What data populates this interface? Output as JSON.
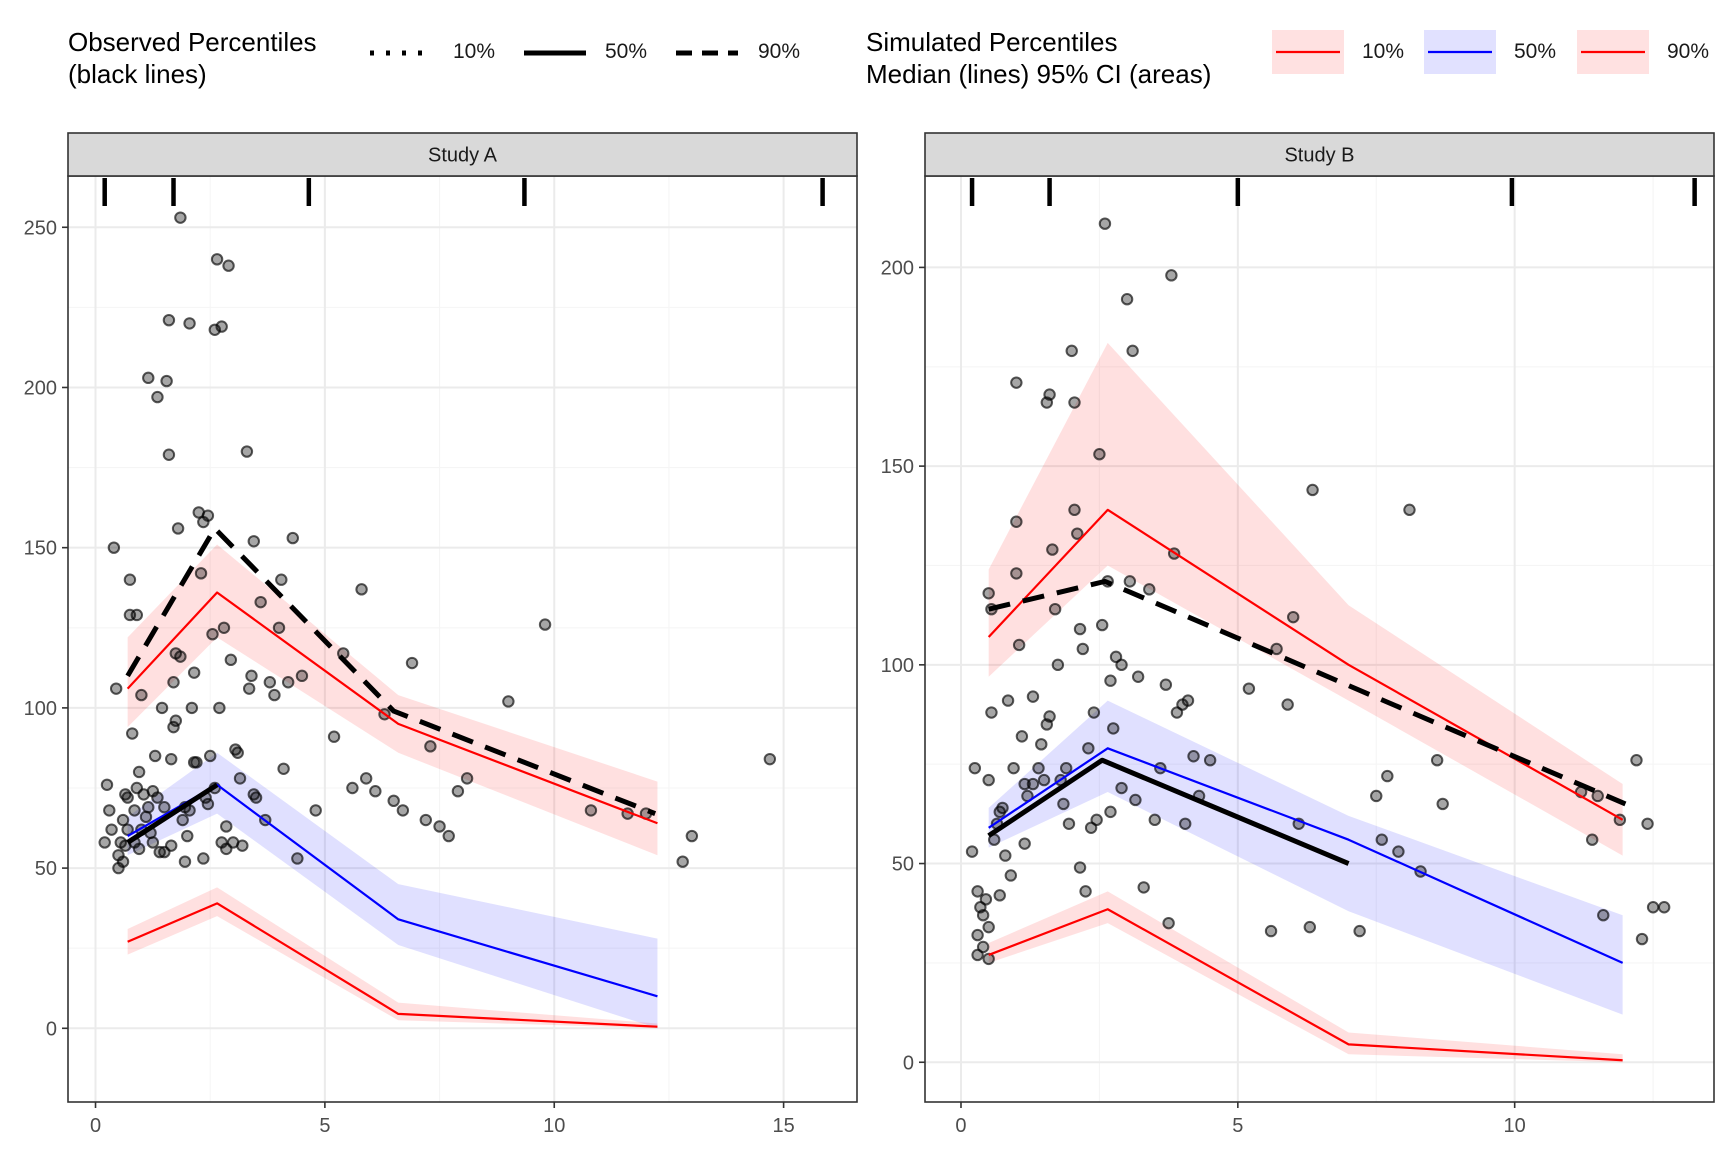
{
  "legend": {
    "observed": {
      "title": [
        "Observed Percentiles",
        "(black lines)"
      ],
      "items": [
        {
          "label": "10%",
          "dash": "dotted"
        },
        {
          "label": "50%",
          "dash": "solid"
        },
        {
          "label": "90%",
          "dash": "dashed"
        }
      ]
    },
    "simulated": {
      "title": [
        "Simulated Percentiles",
        "Median (lines) 95% CI (areas)"
      ],
      "items": [
        {
          "label": "10%",
          "line": "#ff0000",
          "fill": "#ffe1e1"
        },
        {
          "label": "50%",
          "line": "#0000ff",
          "fill": "#e1e1ff"
        },
        {
          "label": "90%",
          "line": "#ff0000",
          "fill": "#ffe1e1"
        }
      ]
    }
  },
  "chart_data": [
    {
      "type": "line",
      "panel": "Study A",
      "xlim": [
        -0.6,
        16.6
      ],
      "ylim": [
        -23,
        266
      ],
      "xticks": [
        0,
        5,
        10,
        15
      ],
      "yticks": [
        0,
        50,
        100,
        150,
        200,
        250
      ],
      "grid": true,
      "bin_edges": [
        0.2,
        1.7,
        4.65,
        9.35,
        15.85
      ],
      "observed": {
        "p50": {
          "x": [
            0.7,
            2.65
          ],
          "y": [
            58,
            76
          ]
        },
        "p90": {
          "x": [
            0.7,
            2.6,
            6.5,
            12.2
          ],
          "y": [
            110,
            156,
            99,
            67
          ]
        }
      },
      "simulated": {
        "x": [
          0.7,
          2.65,
          6.6,
          12.25
        ],
        "p10": {
          "median": [
            27,
            39,
            4.5,
            0.5
          ],
          "lower": [
            23,
            35,
            2.5,
            0
          ],
          "upper": [
            31,
            44,
            8,
            1.5
          ]
        },
        "p50": {
          "median": [
            60,
            76,
            34,
            10
          ],
          "lower": [
            54,
            67,
            26,
            0
          ],
          "upper": [
            66,
            86,
            45,
            28
          ]
        },
        "p90": {
          "median": [
            106,
            136,
            95,
            64
          ],
          "lower": [
            94,
            122,
            86,
            54
          ],
          "upper": [
            122,
            151,
            104,
            77
          ]
        }
      },
      "points": [
        [
          0.2,
          58
        ],
        [
          0.25,
          76
        ],
        [
          0.3,
          68
        ],
        [
          0.35,
          62
        ],
        [
          0.4,
          150
        ],
        [
          0.45,
          106
        ],
        [
          0.5,
          50
        ],
        [
          0.5,
          54
        ],
        [
          0.55,
          58
        ],
        [
          0.6,
          65
        ],
        [
          0.6,
          52
        ],
        [
          0.65,
          57
        ],
        [
          0.7,
          72
        ],
        [
          0.7,
          62
        ],
        [
          0.75,
          129
        ],
        [
          0.75,
          140
        ],
        [
          0.8,
          92
        ],
        [
          0.85,
          58
        ],
        [
          0.9,
          129
        ],
        [
          0.9,
          75
        ],
        [
          0.95,
          56
        ],
        [
          1.0,
          62
        ],
        [
          1.0,
          104
        ],
        [
          1.05,
          73
        ],
        [
          1.1,
          66
        ],
        [
          1.15,
          203
        ],
        [
          1.2,
          61
        ],
        [
          1.25,
          74
        ],
        [
          1.3,
          85
        ],
        [
          1.35,
          197
        ],
        [
          1.4,
          55
        ],
        [
          1.45,
          100
        ],
        [
          1.5,
          69
        ],
        [
          1.55,
          202
        ],
        [
          1.6,
          179
        ],
        [
          1.6,
          221
        ],
        [
          1.65,
          57
        ],
        [
          1.7,
          108
        ],
        [
          1.7,
          94
        ],
        [
          1.75,
          117
        ],
        [
          1.8,
          156
        ],
        [
          1.85,
          253
        ],
        [
          1.85,
          116
        ],
        [
          1.9,
          65
        ],
        [
          1.95,
          52
        ],
        [
          2.0,
          60
        ],
        [
          2.05,
          220
        ],
        [
          2.1,
          100
        ],
        [
          2.15,
          111
        ],
        [
          2.2,
          83
        ],
        [
          2.25,
          161
        ],
        [
          2.3,
          142
        ],
        [
          2.35,
          158
        ],
        [
          2.4,
          72
        ],
        [
          2.45,
          160
        ],
        [
          2.5,
          85
        ],
        [
          2.55,
          123
        ],
        [
          2.6,
          218
        ],
        [
          2.65,
          240
        ],
        [
          2.7,
          100
        ],
        [
          2.75,
          219
        ],
        [
          2.8,
          125
        ],
        [
          2.85,
          56
        ],
        [
          2.9,
          238
        ],
        [
          2.95,
          115
        ],
        [
          3.0,
          58
        ],
        [
          3.1,
          86
        ],
        [
          3.2,
          57
        ],
        [
          3.3,
          180
        ],
        [
          3.35,
          106
        ],
        [
          3.4,
          110
        ],
        [
          3.45,
          152
        ],
        [
          3.5,
          72
        ],
        [
          3.6,
          133
        ],
        [
          3.7,
          65
        ],
        [
          3.8,
          108
        ],
        [
          3.9,
          104
        ],
        [
          4.0,
          125
        ],
        [
          4.05,
          140
        ],
        [
          4.1,
          81
        ],
        [
          4.2,
          108
        ],
        [
          4.3,
          153
        ],
        [
          4.4,
          53
        ],
        [
          4.5,
          110
        ],
        [
          4.8,
          68
        ],
        [
          5.2,
          91
        ],
        [
          5.4,
          117
        ],
        [
          5.6,
          75
        ],
        [
          5.8,
          137
        ],
        [
          5.9,
          78
        ],
        [
          6.1,
          74
        ],
        [
          6.3,
          98
        ],
        [
          6.5,
          71
        ],
        [
          6.7,
          68
        ],
        [
          6.9,
          114
        ],
        [
          7.2,
          65
        ],
        [
          7.3,
          88
        ],
        [
          7.5,
          63
        ],
        [
          7.7,
          60
        ],
        [
          7.9,
          74
        ],
        [
          8.1,
          78
        ],
        [
          9.0,
          102
        ],
        [
          9.8,
          126
        ],
        [
          10.8,
          68
        ],
        [
          11.6,
          67
        ],
        [
          12.0,
          67
        ],
        [
          12.8,
          52
        ],
        [
          13.0,
          60
        ],
        [
          14.7,
          84
        ],
        [
          1.95,
          69
        ],
        [
          2.35,
          53
        ],
        [
          3.05,
          87
        ],
        [
          2.15,
          83
        ],
        [
          1.35,
          72
        ],
        [
          0.95,
          80
        ],
        [
          1.5,
          55
        ],
        [
          2.6,
          75
        ],
        [
          2.05,
          68
        ],
        [
          1.15,
          69
        ],
        [
          3.15,
          78
        ],
        [
          2.75,
          58
        ],
        [
          1.65,
          84
        ],
        [
          0.85,
          68
        ],
        [
          2.45,
          70
        ],
        [
          1.25,
          58
        ],
        [
          2.85,
          63
        ],
        [
          1.75,
          96
        ],
        [
          3.45,
          73
        ],
        [
          0.65,
          73
        ]
      ]
    },
    {
      "type": "line",
      "panel": "Study B",
      "xlim": [
        -0.65,
        13.6
      ],
      "ylim": [
        -10,
        223
      ],
      "xticks": [
        0,
        5,
        10
      ],
      "yticks": [
        0,
        50,
        100,
        150,
        200
      ],
      "grid": true,
      "bin_edges": [
        0.2,
        1.6,
        5.0,
        9.95,
        13.25
      ],
      "observed": {
        "p50": {
          "x": [
            0.5,
            2.55,
            7.0
          ],
          "y": [
            57,
            76,
            50
          ]
        },
        "p90": {
          "x": [
            0.5,
            2.6,
            12.0
          ],
          "y": [
            114,
            121,
            65
          ]
        }
      },
      "simulated": {
        "x": [
          0.5,
          2.65,
          7.0,
          11.95
        ],
        "p10": {
          "median": [
            27,
            38.5,
            4.5,
            0.5
          ],
          "lower": [
            25,
            35,
            2,
            0
          ],
          "upper": [
            30,
            43,
            7.5,
            2
          ]
        },
        "p50": {
          "median": [
            59,
            79,
            56,
            25
          ],
          "lower": [
            54,
            68,
            38,
            12
          ],
          "upper": [
            64,
            91,
            62,
            37
          ]
        },
        "p90": {
          "median": [
            107,
            139,
            100,
            61
          ],
          "lower": [
            97,
            125,
            91,
            52
          ],
          "upper": [
            124,
            181,
            115,
            70
          ]
        }
      },
      "points": [
        [
          0.2,
          53
        ],
        [
          0.25,
          74
        ],
        [
          0.3,
          32
        ],
        [
          0.3,
          27
        ],
        [
          0.3,
          43
        ],
        [
          0.35,
          39
        ],
        [
          0.4,
          37
        ],
        [
          0.4,
          29
        ],
        [
          0.45,
          41
        ],
        [
          0.5,
          118
        ],
        [
          0.5,
          71
        ],
        [
          0.5,
          34
        ],
        [
          0.5,
          26
        ],
        [
          0.55,
          114
        ],
        [
          0.55,
          88
        ],
        [
          0.6,
          56
        ],
        [
          0.65,
          60
        ],
        [
          0.7,
          63
        ],
        [
          0.7,
          42
        ],
        [
          0.8,
          52
        ],
        [
          0.9,
          47
        ],
        [
          0.95,
          74
        ],
        [
          1.0,
          171
        ],
        [
          1.0,
          136
        ],
        [
          1.0,
          123
        ],
        [
          1.05,
          105
        ],
        [
          1.1,
          82
        ],
        [
          1.15,
          55
        ],
        [
          1.2,
          67
        ],
        [
          1.3,
          70
        ],
        [
          1.4,
          74
        ],
        [
          1.5,
          71
        ],
        [
          1.55,
          166
        ],
        [
          1.6,
          168
        ],
        [
          1.6,
          87
        ],
        [
          1.65,
          129
        ],
        [
          1.7,
          114
        ],
        [
          1.75,
          100
        ],
        [
          1.8,
          71
        ],
        [
          1.85,
          65
        ],
        [
          1.95,
          60
        ],
        [
          2.0,
          179
        ],
        [
          2.05,
          166
        ],
        [
          2.05,
          139
        ],
        [
          2.1,
          133
        ],
        [
          2.15,
          109
        ],
        [
          2.2,
          104
        ],
        [
          2.25,
          43
        ],
        [
          2.3,
          79
        ],
        [
          2.4,
          88
        ],
        [
          2.45,
          61
        ],
        [
          2.5,
          153
        ],
        [
          2.55,
          110
        ],
        [
          2.6,
          211
        ],
        [
          2.65,
          121
        ],
        [
          2.7,
          96
        ],
        [
          2.75,
          84
        ],
        [
          2.8,
          102
        ],
        [
          2.9,
          100
        ],
        [
          3.0,
          192
        ],
        [
          3.05,
          121
        ],
        [
          3.1,
          179
        ],
        [
          3.2,
          97
        ],
        [
          3.3,
          44
        ],
        [
          3.4,
          119
        ],
        [
          3.5,
          61
        ],
        [
          3.6,
          74
        ],
        [
          3.7,
          95
        ],
        [
          3.75,
          35
        ],
        [
          3.8,
          198
        ],
        [
          3.85,
          128
        ],
        [
          3.9,
          88
        ],
        [
          4.0,
          90
        ],
        [
          4.05,
          60
        ],
        [
          4.1,
          91
        ],
        [
          4.2,
          77
        ],
        [
          4.3,
          67
        ],
        [
          4.5,
          76
        ],
        [
          5.2,
          94
        ],
        [
          5.6,
          33
        ],
        [
          5.7,
          104
        ],
        [
          5.9,
          90
        ],
        [
          6.0,
          112
        ],
        [
          6.1,
          60
        ],
        [
          6.3,
          34
        ],
        [
          6.35,
          144
        ],
        [
          7.2,
          33
        ],
        [
          7.5,
          67
        ],
        [
          7.6,
          56
        ],
        [
          7.7,
          72
        ],
        [
          7.9,
          53
        ],
        [
          8.1,
          139
        ],
        [
          8.3,
          48
        ],
        [
          8.6,
          76
        ],
        [
          8.7,
          65
        ],
        [
          11.2,
          68
        ],
        [
          11.5,
          67
        ],
        [
          12.2,
          76
        ],
        [
          12.4,
          60
        ],
        [
          12.5,
          39
        ],
        [
          12.7,
          39
        ],
        [
          12.3,
          31
        ],
        [
          11.9,
          61
        ],
        [
          11.6,
          37
        ],
        [
          11.4,
          56
        ],
        [
          1.3,
          92
        ],
        [
          1.55,
          85
        ],
        [
          1.15,
          70
        ],
        [
          0.75,
          64
        ],
        [
          2.9,
          69
        ],
        [
          3.15,
          66
        ],
        [
          2.35,
          59
        ],
        [
          2.7,
          63
        ],
        [
          1.9,
          74
        ],
        [
          2.15,
          49
        ],
        [
          1.45,
          80
        ],
        [
          0.85,
          91
        ]
      ]
    }
  ]
}
